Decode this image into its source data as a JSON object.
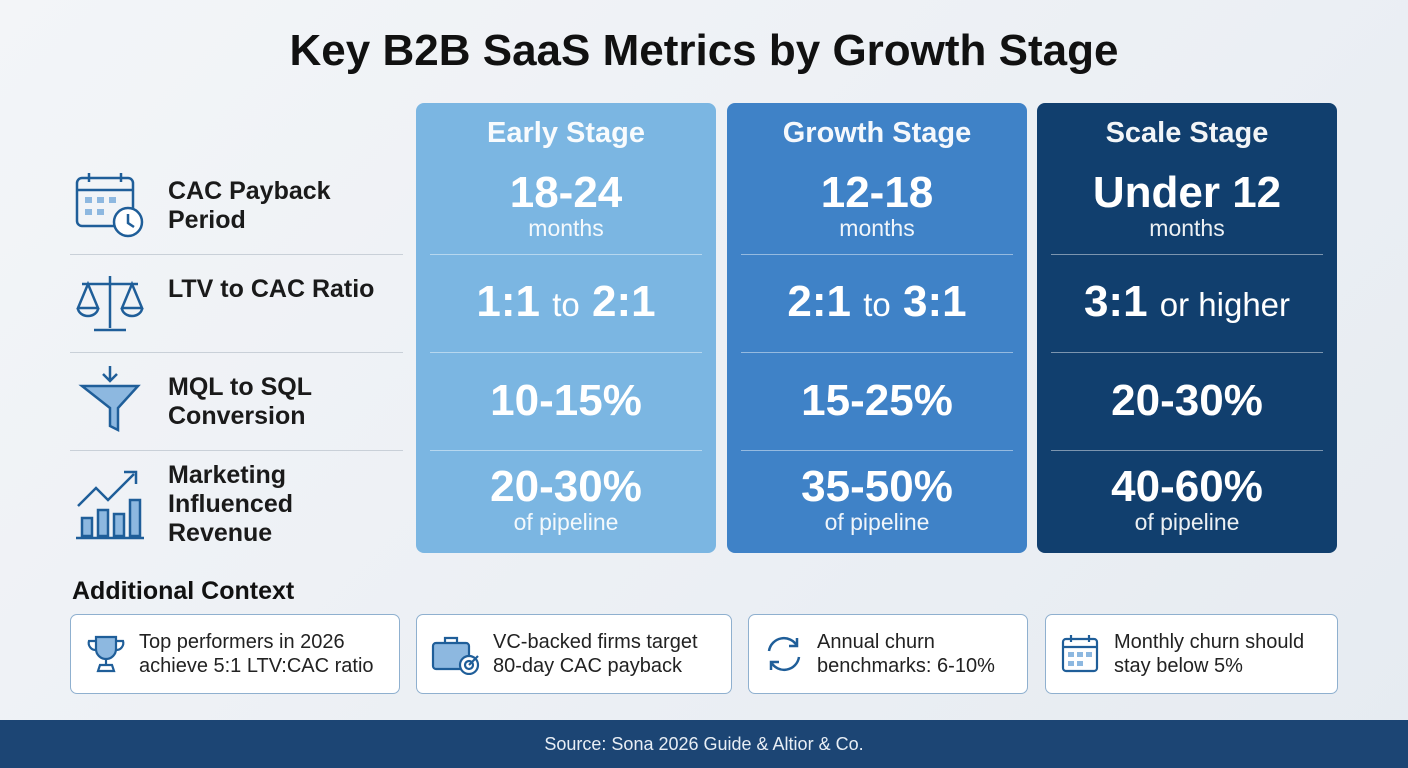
{
  "title": "Key B2B SaaS Metrics by Growth Stage",
  "metrics": [
    "CAC Payback Period",
    "LTV to CAC Ratio",
    "MQL to SQL Conversion",
    "Marketing Influenced Revenue"
  ],
  "stages": [
    {
      "name": "Early Stage",
      "cells": [
        {
          "value": "18-24",
          "unit": "months"
        },
        {
          "low": "1:1",
          "joiner": "to",
          "high": "2:1"
        },
        {
          "value": "10-15%"
        },
        {
          "value": "20-30%",
          "unit": "of pipeline"
        }
      ]
    },
    {
      "name": "Growth Stage",
      "cells": [
        {
          "value": "12-18",
          "unit": "months"
        },
        {
          "low": "2:1",
          "joiner": "to",
          "high": "3:1"
        },
        {
          "value": "15-25%"
        },
        {
          "value": "35-50%",
          "unit": "of pipeline"
        }
      ]
    },
    {
      "name": "Scale Stage",
      "cells": [
        {
          "value": "Under 12",
          "unit": "months"
        },
        {
          "low": "3:1",
          "joiner": "or higher"
        },
        {
          "value": "20-30%"
        },
        {
          "value": "40-60%",
          "unit": "of pipeline"
        }
      ]
    }
  ],
  "context": {
    "title": "Additional Context",
    "items": [
      "Top performers in 2026 achieve 5:1 LTV:CAC ratio",
      "VC-backed firms target 80-day CAC payback",
      "Annual churn benchmarks: 6-10%",
      "Monthly churn should stay below 5%"
    ]
  },
  "source": "Source: Sona 2026 Guide & Altior & Co."
}
